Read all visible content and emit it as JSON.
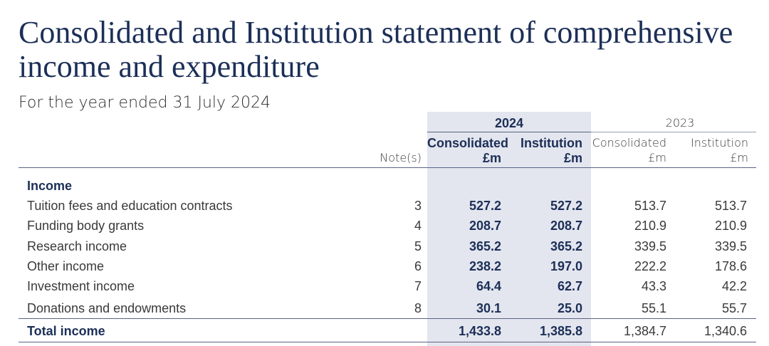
{
  "title": "Consolidated and Institution statement of comprehensive income and expenditure",
  "subtitle": "For the year ended 31 July 2024",
  "header": {
    "year_current": "2024",
    "year_prior": "2023",
    "note_label": "Note(s)",
    "col_consolidated": "Consolidated",
    "col_institution": "Institution",
    "unit": "£m"
  },
  "section_income": "Income",
  "rows": [
    {
      "label": "Tuition fees and education contracts",
      "note": "3",
      "c2024": "527.2",
      "i2024": "527.2",
      "c2023": "513.7",
      "i2023": "513.7"
    },
    {
      "label": "Funding body grants",
      "note": "4",
      "c2024": "208.7",
      "i2024": "208.7",
      "c2023": "210.9",
      "i2023": "210.9"
    },
    {
      "label": "Research income",
      "note": "5",
      "c2024": "365.2",
      "i2024": "365.2",
      "c2023": "339.5",
      "i2023": "339.5"
    },
    {
      "label": "Other income",
      "note": "6",
      "c2024": "238.2",
      "i2024": "197.0",
      "c2023": "222.2",
      "i2023": "178.6"
    },
    {
      "label": "Investment income",
      "note": "7",
      "c2024": "64.4",
      "i2024": "62.7",
      "c2023": "43.3",
      "i2023": "42.2"
    },
    {
      "label": "Donations and endowments",
      "note": "8",
      "c2024": "30.1",
      "i2024": "25.0",
      "c2023": "55.1",
      "i2023": "55.7"
    }
  ],
  "total": {
    "label": "Total income",
    "c2024": "1,433.8",
    "i2024": "1,385.8",
    "c2023": "1,384.7",
    "i2023": "1,340.6"
  }
}
